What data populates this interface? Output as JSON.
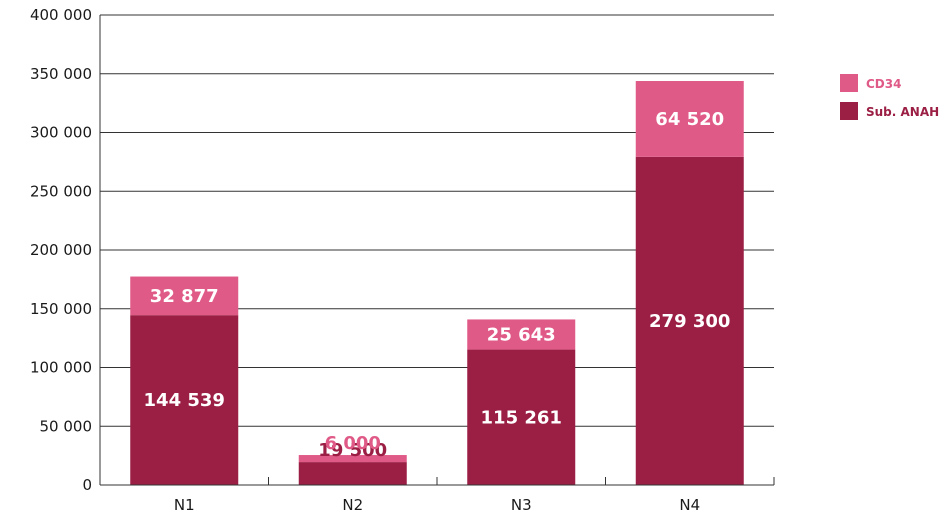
{
  "chart_data": {
    "type": "bar",
    "stacked": true,
    "categories": [
      "N1",
      "N2",
      "N3",
      "N4"
    ],
    "series": [
      {
        "name": "Sub. ANAH",
        "values": [
          144539,
          19500,
          115261,
          279300
        ],
        "labels": [
          "144 539",
          "19 500",
          "115 261",
          "279 300"
        ],
        "color": "#9b1f45"
      },
      {
        "name": "CD34",
        "values": [
          32877,
          6000,
          25643,
          64520
        ],
        "labels": [
          "32 877",
          "6 000",
          "25 643",
          "64 520"
        ],
        "color": "#e05a87"
      }
    ],
    "ylim": [
      0,
      400000
    ],
    "yticks": [
      0,
      50000,
      100000,
      150000,
      200000,
      250000,
      300000,
      350000,
      400000
    ],
    "ytick_labels": [
      "0",
      "50 000",
      "100 000",
      "150 000",
      "200 000",
      "250 000",
      "300 000",
      "350 000",
      "400 000"
    ],
    "grid": true,
    "legend": "right",
    "title": "",
    "xlabel": "",
    "ylabel": ""
  }
}
